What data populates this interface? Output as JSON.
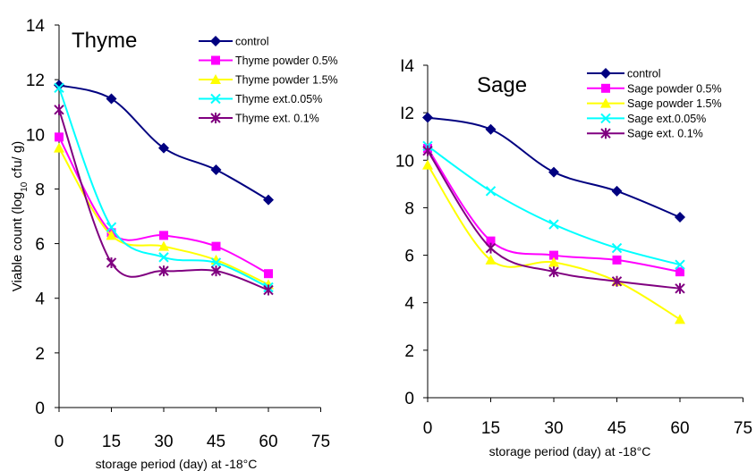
{
  "chart_data": [
    {
      "type": "line",
      "title": "Thyme",
      "xlabel": "storage period (day) at -18°C",
      "ylabel": "Viable count (log",
      "ylabel_sub": "10",
      "ylabel_tail": " cfu/ g)",
      "xlim": [
        0,
        75
      ],
      "ylim": [
        0,
        14
      ],
      "xticks": [
        0,
        15,
        30,
        45,
        60,
        75
      ],
      "yticks": [
        0,
        2,
        4,
        6,
        8,
        10,
        12,
        14
      ],
      "grid": false,
      "legend_position": "top-right",
      "x": [
        0,
        15,
        30,
        45,
        60
      ],
      "series": [
        {
          "name": "control",
          "color": "#000080",
          "marker": "diamond",
          "values": [
            11.8,
            11.3,
            9.5,
            8.7,
            7.6
          ]
        },
        {
          "name": "Thyme powder 0.5%",
          "color": "#FF00FF",
          "marker": "square",
          "values": [
            9.9,
            6.4,
            6.3,
            5.9,
            4.9
          ]
        },
        {
          "name": "Thyme powder 1.5%",
          "color": "#FFFF00",
          "marker": "triangle",
          "values": [
            9.5,
            6.3,
            5.9,
            5.4,
            4.5
          ]
        },
        {
          "name": "Thyme ext.0.05%",
          "color": "#00FFFF",
          "marker": "x",
          "values": [
            11.7,
            6.6,
            5.5,
            5.3,
            4.4
          ]
        },
        {
          "name": "Thyme ext. 0.1%",
          "color": "#800080",
          "marker": "star",
          "values": [
            10.9,
            5.3,
            5.0,
            5.0,
            4.3
          ]
        }
      ]
    },
    {
      "type": "line",
      "title": "Sage",
      "xlabel": "storage period (day) at -18°C",
      "ylabel": "",
      "xlim": [
        0,
        75
      ],
      "ylim": [
        0,
        14
      ],
      "xticks": [
        0,
        15,
        30,
        45,
        60,
        75
      ],
      "yticks": [
        0,
        2,
        4,
        6,
        8,
        10,
        12,
        14
      ],
      "ytick_labels": [
        "0",
        "2",
        "4",
        "6",
        "8",
        "10",
        "I2",
        "I4"
      ],
      "grid": false,
      "legend_position": "top-right",
      "x": [
        0,
        15,
        30,
        45,
        60
      ],
      "series": [
        {
          "name": "control",
          "color": "#000080",
          "marker": "diamond",
          "values": [
            11.8,
            11.3,
            9.5,
            8.7,
            7.6
          ]
        },
        {
          "name": "Sage powder 0.5%",
          "color": "#FF00FF",
          "marker": "square",
          "values": [
            10.5,
            6.6,
            6.0,
            5.8,
            5.3
          ]
        },
        {
          "name": "Sage powder 1.5%",
          "color": "#FFFF00",
          "marker": "triangle",
          "values": [
            9.8,
            5.8,
            5.7,
            4.9,
            3.3
          ]
        },
        {
          "name": "Sage ext.0.05%",
          "color": "#00FFFF",
          "marker": "x",
          "values": [
            10.6,
            8.7,
            7.3,
            6.3,
            5.6
          ]
        },
        {
          "name": "Sage ext. 0.1%",
          "color": "#800080",
          "marker": "star",
          "values": [
            10.4,
            6.3,
            5.3,
            4.9,
            4.6
          ]
        }
      ]
    }
  ]
}
